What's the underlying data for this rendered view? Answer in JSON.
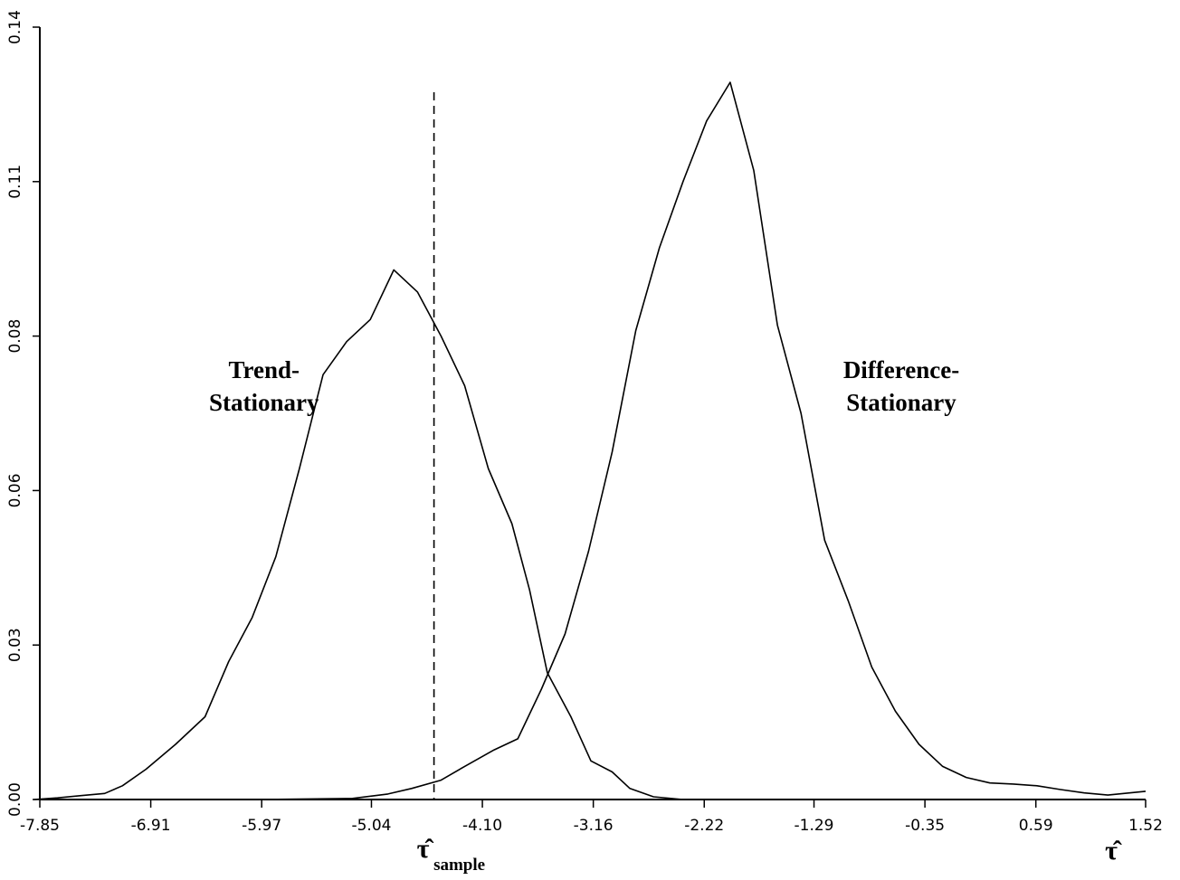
{
  "chart_data": {
    "type": "line",
    "title": "",
    "xlabel": "τ̂",
    "ylabel": "",
    "xlim": [
      -7.85,
      1.52
    ],
    "ylim": [
      0,
      0.14
    ],
    "xticks": [
      -7.85,
      -6.91,
      -5.97,
      -5.04,
      -4.1,
      -3.16,
      -2.22,
      -1.29,
      -0.35,
      0.59,
      1.52
    ],
    "xtick_labels": [
      "-7.85",
      "-6.91",
      "-5.97",
      "-5.04",
      "-4.10",
      "-3.16",
      "-2.22",
      "-1.29",
      "-0.35",
      "0.59",
      "1.52"
    ],
    "yticks": [
      0,
      0.028,
      0.056,
      0.084,
      0.112,
      0.14
    ],
    "ytick_labels": [
      "0.00",
      "0.03",
      "0.06",
      "0.08",
      "0.11",
      "0.14"
    ],
    "grid": false,
    "series": [
      {
        "points": [
          [
            -7.9,
            0.0
          ],
          [
            -7.7,
            0.0003
          ],
          [
            -7.5,
            0.0007
          ],
          [
            -7.3,
            0.0011
          ],
          [
            -7.15,
            0.0025
          ],
          [
            -6.95,
            0.0055
          ],
          [
            -6.7,
            0.01
          ],
          [
            -6.45,
            0.015
          ],
          [
            -6.25,
            0.025
          ],
          [
            -6.05,
            0.033
          ],
          [
            -5.85,
            0.044
          ],
          [
            -5.65,
            0.06
          ],
          [
            -5.45,
            0.077
          ],
          [
            -5.25,
            0.083
          ],
          [
            -5.05,
            0.087
          ],
          [
            -4.85,
            0.096
          ],
          [
            -4.65,
            0.092
          ],
          [
            -4.45,
            0.084
          ],
          [
            -4.25,
            0.075
          ],
          [
            -4.05,
            0.06
          ],
          [
            -3.85,
            0.05
          ],
          [
            -3.7,
            0.038
          ],
          [
            -3.55,
            0.023
          ],
          [
            -3.35,
            0.015
          ],
          [
            -3.18,
            0.007
          ],
          [
            -3.0,
            0.005
          ],
          [
            -2.85,
            0.002
          ],
          [
            -2.65,
            0.0005
          ],
          [
            -2.4,
            0.0
          ],
          [
            -1.5,
            0.0
          ],
          [
            0.0,
            0.0
          ],
          [
            1.52,
            0.0
          ]
        ]
      },
      {
        "points": [
          [
            -7.85,
            0.0
          ],
          [
            -6.0,
            0.0
          ],
          [
            -5.2,
            0.0002
          ],
          [
            -4.9,
            0.001
          ],
          [
            -4.7,
            0.002
          ],
          [
            -4.45,
            0.0035
          ],
          [
            -4.25,
            0.006
          ],
          [
            -4.0,
            0.009
          ],
          [
            -3.8,
            0.011
          ],
          [
            -3.6,
            0.02
          ],
          [
            -3.4,
            0.03
          ],
          [
            -3.2,
            0.045
          ],
          [
            -3.0,
            0.063
          ],
          [
            -2.8,
            0.085
          ],
          [
            -2.6,
            0.1
          ],
          [
            -2.4,
            0.112
          ],
          [
            -2.2,
            0.123
          ],
          [
            -2.0,
            0.13
          ],
          [
            -1.8,
            0.114
          ],
          [
            -1.6,
            0.086
          ],
          [
            -1.4,
            0.07
          ],
          [
            -1.2,
            0.047
          ],
          [
            -1.0,
            0.036
          ],
          [
            -0.8,
            0.024
          ],
          [
            -0.6,
            0.016
          ],
          [
            -0.4,
            0.01
          ],
          [
            -0.2,
            0.006
          ],
          [
            0.0,
            0.004
          ],
          [
            0.2,
            0.003
          ],
          [
            0.4,
            0.0028
          ],
          [
            0.6,
            0.0025
          ],
          [
            0.8,
            0.0018
          ],
          [
            1.0,
            0.0012
          ],
          [
            1.2,
            0.0008
          ],
          [
            1.52,
            0.0015
          ]
        ]
      }
    ],
    "annotations": [
      {
        "lines": [
          "Trend-",
          "Stationary"
        ],
        "x": -5.95,
        "y": 0.078
      },
      {
        "lines": [
          "Difference-",
          "Stationary"
        ],
        "x": -0.55,
        "y": 0.078
      }
    ],
    "reference_line": {
      "x": -4.51,
      "style": "dashed",
      "label": "τ̂",
      "label_subscript": "sample"
    }
  }
}
